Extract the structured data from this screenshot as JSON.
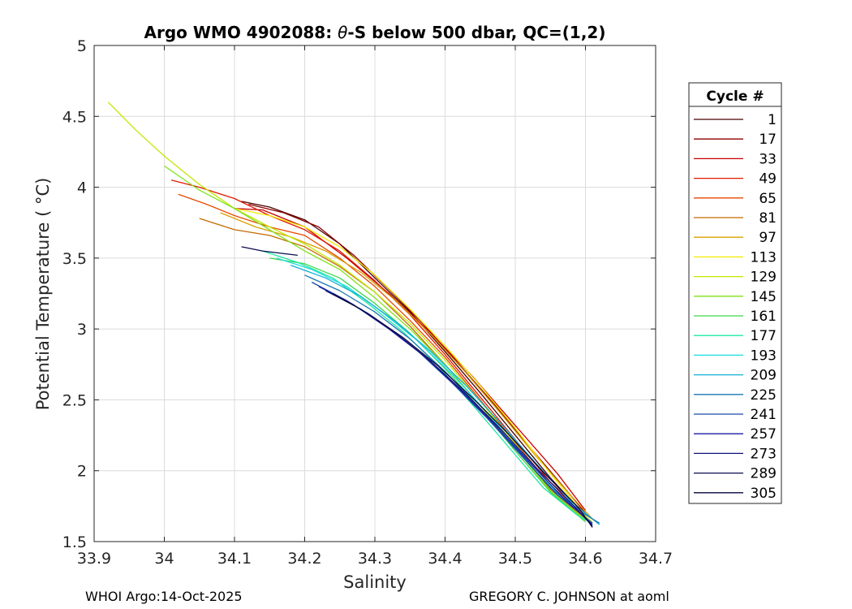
{
  "chart_data": {
    "type": "line",
    "title_prefix": "Argo WMO 4902088: ",
    "title_theta": "θ",
    "title_suffix": "-S below 500 dbar,  QC=(1,2)",
    "xlabel": "Salinity",
    "ylabel": "Potential Temperature ( °C)",
    "xlim": [
      33.9,
      34.7
    ],
    "ylim": [
      1.5,
      5.0
    ],
    "x_ticks": [
      33.9,
      34.0,
      34.1,
      34.2,
      34.3,
      34.4,
      34.5,
      34.6,
      34.7
    ],
    "x_tick_labels": [
      "33.9",
      "34",
      "34.1",
      "34.2",
      "34.3",
      "34.4",
      "34.5",
      "34.6",
      "34.7"
    ],
    "y_ticks": [
      1.5,
      2.0,
      2.5,
      3.0,
      3.5,
      4.0,
      4.5,
      5.0
    ],
    "y_tick_labels": [
      "1.5",
      "2",
      "2.5",
      "3",
      "3.5",
      "4",
      "4.5",
      "5"
    ],
    "grid": true,
    "legend_title": "Cycle #",
    "legend_position": "outside-right",
    "legend": [
      {
        "label": "1",
        "color": "#4a0000"
      },
      {
        "label": "17",
        "color": "#8e0000"
      },
      {
        "label": "33",
        "color": "#c80000"
      },
      {
        "label": "49",
        "color": "#e01a00"
      },
      {
        "label": "65",
        "color": "#e64a00"
      },
      {
        "label": "81",
        "color": "#c46a00"
      },
      {
        "label": "97",
        "color": "#d9a000"
      },
      {
        "label": "113",
        "color": "#f2ea00"
      },
      {
        "label": "129",
        "color": "#bfe800"
      },
      {
        "label": "145",
        "color": "#7fe21a"
      },
      {
        "label": "161",
        "color": "#3ed84c"
      },
      {
        "label": "177",
        "color": "#1ee8a4"
      },
      {
        "label": "193",
        "color": "#18dede"
      },
      {
        "label": "209",
        "color": "#16b0d8"
      },
      {
        "label": "225",
        "color": "#1a78b4"
      },
      {
        "label": "241",
        "color": "#1a4ca6"
      },
      {
        "label": "257",
        "color": "#1c1ca6"
      },
      {
        "label": "273",
        "color": "#12127a"
      },
      {
        "label": "289",
        "color": "#0a0a50"
      },
      {
        "label": "305",
        "color": "#06063e"
      }
    ],
    "series": [
      {
        "name": "1",
        "color": "#4a0000",
        "x": [
          34.11,
          34.15,
          34.2,
          34.25,
          34.3,
          34.35,
          34.4,
          34.45,
          34.5,
          34.55,
          34.6
        ],
        "y": [
          3.9,
          3.86,
          3.77,
          3.6,
          3.36,
          3.12,
          2.84,
          2.55,
          2.25,
          1.95,
          1.68
        ]
      },
      {
        "name": "17",
        "color": "#8e0000",
        "x": [
          34.12,
          34.17,
          34.22,
          34.27,
          34.32,
          34.37,
          34.42,
          34.47,
          34.52,
          34.57,
          34.6
        ],
        "y": [
          3.88,
          3.82,
          3.72,
          3.52,
          3.28,
          3.03,
          2.75,
          2.47,
          2.17,
          1.88,
          1.7
        ]
      },
      {
        "name": "33",
        "color": "#c80000",
        "x": [
          34.1,
          34.14,
          34.2,
          34.26,
          34.32,
          34.38,
          34.44,
          34.5,
          34.56,
          34.6
        ],
        "y": [
          3.85,
          3.84,
          3.72,
          3.5,
          3.25,
          2.97,
          2.66,
          2.32,
          1.98,
          1.72
        ]
      },
      {
        "name": "49",
        "color": "#e01a00",
        "x": [
          34.01,
          34.05,
          34.1,
          34.15,
          34.2,
          34.25,
          34.3,
          34.35,
          34.4,
          34.45,
          34.5,
          34.55,
          34.6
        ],
        "y": [
          4.05,
          4.0,
          3.92,
          3.8,
          3.7,
          3.55,
          3.34,
          3.1,
          2.82,
          2.52,
          2.22,
          1.92,
          1.7
        ]
      },
      {
        "name": "65",
        "color": "#e64a00",
        "x": [
          34.02,
          34.06,
          34.1,
          34.15,
          34.2,
          34.25,
          34.3,
          34.35,
          34.4,
          34.45,
          34.5,
          34.55,
          34.6
        ],
        "y": [
          3.95,
          3.88,
          3.8,
          3.72,
          3.66,
          3.5,
          3.3,
          3.06,
          2.8,
          2.5,
          2.2,
          1.9,
          1.68
        ]
      },
      {
        "name": "81",
        "color": "#c46a00",
        "x": [
          34.05,
          34.1,
          34.15,
          34.2,
          34.25,
          34.3,
          34.35,
          34.4,
          34.45,
          34.5,
          34.55,
          34.6
        ],
        "y": [
          3.78,
          3.7,
          3.66,
          3.58,
          3.44,
          3.26,
          3.02,
          2.75,
          2.46,
          2.16,
          1.87,
          1.66
        ]
      },
      {
        "name": "97",
        "color": "#d9a000",
        "x": [
          34.08,
          34.13,
          34.18,
          34.23,
          34.28,
          34.33,
          34.38,
          34.43,
          34.48,
          34.53,
          34.58,
          34.61
        ],
        "y": [
          3.82,
          3.72,
          3.65,
          3.55,
          3.4,
          3.2,
          2.96,
          2.69,
          2.4,
          2.1,
          1.82,
          1.66
        ]
      },
      {
        "name": "113",
        "color": "#f2ea00",
        "x": [
          34.1,
          34.15,
          34.2,
          34.25,
          34.3,
          34.35,
          34.4,
          34.45,
          34.5,
          34.55,
          34.6,
          34.61
        ],
        "y": [
          3.85,
          3.8,
          3.72,
          3.58,
          3.38,
          3.14,
          2.88,
          2.6,
          2.3,
          1.98,
          1.68,
          1.64
        ]
      },
      {
        "name": "129",
        "color": "#bfe800",
        "x": [
          33.92,
          33.96,
          34.0,
          34.05,
          34.1,
          34.15,
          34.2,
          34.25,
          34.3,
          34.35,
          34.4,
          34.45,
          34.5,
          34.55,
          34.6
        ],
        "y": [
          4.6,
          4.4,
          4.22,
          4.02,
          3.85,
          3.72,
          3.6,
          3.45,
          3.26,
          3.04,
          2.78,
          2.49,
          2.19,
          1.89,
          1.66
        ]
      },
      {
        "name": "145",
        "color": "#7fe21a",
        "x": [
          34.0,
          34.05,
          34.1,
          34.15,
          34.2,
          34.25,
          34.3,
          34.35,
          34.4,
          34.45,
          34.5,
          34.55,
          34.6
        ],
        "y": [
          4.15,
          3.98,
          3.85,
          3.7,
          3.55,
          3.42,
          3.22,
          3.0,
          2.75,
          2.46,
          2.16,
          1.86,
          1.65
        ]
      },
      {
        "name": "161",
        "color": "#3ed84c",
        "x": [
          34.15,
          34.2,
          34.25,
          34.3,
          34.35,
          34.4,
          34.45,
          34.5,
          34.55,
          34.6
        ],
        "y": [
          3.5,
          3.46,
          3.36,
          3.18,
          2.97,
          2.72,
          2.44,
          2.14,
          1.85,
          1.64
        ]
      },
      {
        "name": "177",
        "color": "#1ee8a4",
        "x": [
          34.14,
          34.19,
          34.24,
          34.29,
          34.34,
          34.39,
          34.44,
          34.49,
          34.54,
          34.59,
          34.61
        ],
        "y": [
          3.55,
          3.47,
          3.36,
          3.18,
          2.98,
          2.74,
          2.46,
          2.17,
          1.88,
          1.68,
          1.63
        ]
      },
      {
        "name": "193",
        "color": "#18dede",
        "x": [
          34.16,
          34.21,
          34.26,
          34.31,
          34.36,
          34.41,
          34.46,
          34.51,
          34.56,
          34.61
        ],
        "y": [
          3.5,
          3.42,
          3.3,
          3.12,
          2.92,
          2.68,
          2.41,
          2.12,
          1.84,
          1.63
        ]
      },
      {
        "name": "209",
        "color": "#16b0d8",
        "x": [
          34.18,
          34.23,
          34.28,
          34.33,
          34.38,
          34.43,
          34.48,
          34.53,
          34.58,
          34.62
        ],
        "y": [
          3.45,
          3.36,
          3.23,
          3.05,
          2.84,
          2.6,
          2.33,
          2.05,
          1.78,
          1.62
        ]
      },
      {
        "name": "225",
        "color": "#1a78b4",
        "x": [
          34.2,
          34.25,
          34.3,
          34.35,
          34.4,
          34.45,
          34.5,
          34.55,
          34.6,
          34.62
        ],
        "y": [
          3.38,
          3.27,
          3.12,
          2.93,
          2.7,
          2.44,
          2.16,
          1.88,
          1.69,
          1.63
        ]
      },
      {
        "name": "241",
        "color": "#1a4ca6",
        "x": [
          34.21,
          34.26,
          34.31,
          34.36,
          34.41,
          34.46,
          34.51,
          34.56,
          34.61
        ],
        "y": [
          3.33,
          3.2,
          3.04,
          2.85,
          2.62,
          2.37,
          2.1,
          1.83,
          1.63
        ]
      },
      {
        "name": "257",
        "color": "#1c1ca6",
        "x": [
          34.22,
          34.27,
          34.32,
          34.37,
          34.42,
          34.47,
          34.52,
          34.57,
          34.61
        ],
        "y": [
          3.3,
          3.17,
          3.0,
          2.81,
          2.58,
          2.33,
          2.06,
          1.8,
          1.62
        ]
      },
      {
        "name": "273",
        "color": "#12127a",
        "x": [
          34.23,
          34.28,
          34.33,
          34.38,
          34.43,
          34.48,
          34.53,
          34.58,
          34.61
        ],
        "y": [
          3.27,
          3.14,
          2.97,
          2.77,
          2.54,
          2.29,
          2.02,
          1.77,
          1.61
        ]
      },
      {
        "name": "289",
        "color": "#0a0a50",
        "x": [
          34.11,
          34.14,
          34.19
        ],
        "y": [
          3.58,
          3.55,
          3.52
        ]
      },
      {
        "name": "305",
        "color": "#06063e",
        "x": [
          34.24,
          34.29,
          34.34,
          34.39,
          34.44,
          34.49,
          34.54,
          34.59,
          34.61
        ],
        "y": [
          3.25,
          3.11,
          2.94,
          2.74,
          2.51,
          2.26,
          1.99,
          1.74,
          1.6
        ]
      }
    ]
  },
  "footer": {
    "left": "WHOI Argo:14-Oct-2025",
    "right": "GREGORY C. JOHNSON at aoml"
  }
}
